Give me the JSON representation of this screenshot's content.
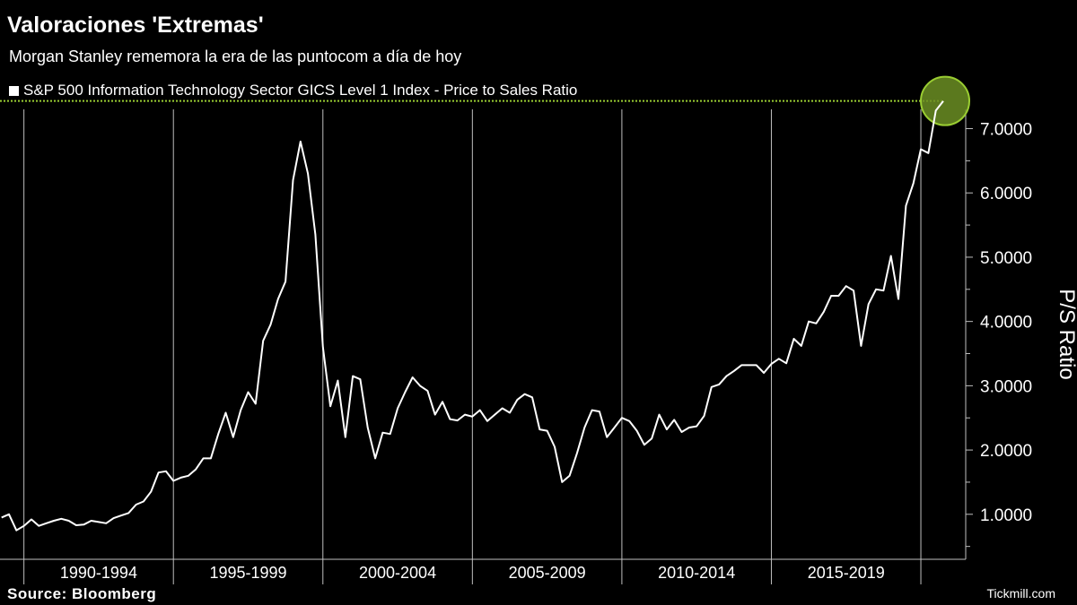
{
  "title": "Valoraciones 'Extremas'",
  "subtitle": "Morgan Stanley rememora la era de las puntocom a día de hoy",
  "source": "Source:  Bloomberg",
  "watermark": "Tickmill.com",
  "colors": {
    "background": "#000000",
    "line": "#ffffff",
    "reference_line": "#9acd32",
    "highlight_fill": "#6b8e23",
    "highlight_stroke": "#9acd32"
  },
  "chart_data": {
    "type": "line",
    "title": "Valoraciones 'Extremas'",
    "subtitle": "Morgan Stanley rememora la era de las puntocom a día de hoy",
    "ylabel": "P/S Ratio",
    "y_axis_side": "right",
    "ylim": [
      0.3,
      7.3
    ],
    "yticks": [
      1.0,
      2.0,
      3.0,
      4.0,
      5.0,
      6.0,
      7.0
    ],
    "ytick_labels": [
      "1.0000",
      "2.0000",
      "3.0000",
      "4.0000",
      "5.0000",
      "6.0000",
      "7.0000"
    ],
    "x_range": [
      1989.2,
      2021.5
    ],
    "x_boundaries": [
      1990,
      1995,
      2000,
      2005,
      2010,
      2015,
      2020
    ],
    "x_category_labels": [
      {
        "label": "1990-1994",
        "start": 1990,
        "end": 1995
      },
      {
        "label": "1995-1999",
        "start": 1995,
        "end": 2000
      },
      {
        "label": "2000-2004",
        "start": 2000,
        "end": 2005
      },
      {
        "label": "2005-2009",
        "start": 2005,
        "end": 2010
      },
      {
        "label": "2010-2014",
        "start": 2010,
        "end": 2015
      },
      {
        "label": "2015-2019",
        "start": 2015,
        "end": 2020
      }
    ],
    "grid": false,
    "legend": {
      "position": "top-left",
      "entries": [
        "S&P 500 Information Technology Sector GICS Level 1 Index - Price to Sales Ratio"
      ]
    },
    "reference_line": {
      "y": 7.43
    },
    "highlight_point": {
      "x": 2020.75,
      "y": 7.43
    },
    "series": [
      {
        "name": "S&P 500 Information Technology Sector GICS Level 1 Index - Price to Sales Ratio",
        "x": [
          1989.25,
          1989.5,
          1989.75,
          1990.0,
          1990.25,
          1990.5,
          1990.75,
          1991.0,
          1991.25,
          1991.5,
          1991.75,
          1992.0,
          1992.25,
          1992.5,
          1992.75,
          1993.0,
          1993.25,
          1993.5,
          1993.75,
          1994.0,
          1994.25,
          1994.5,
          1994.75,
          1995.0,
          1995.25,
          1995.5,
          1995.75,
          1996.0,
          1996.25,
          1996.5,
          1996.75,
          1997.0,
          1997.25,
          1997.5,
          1997.75,
          1998.0,
          1998.25,
          1998.5,
          1998.75,
          1999.0,
          1999.25,
          1999.5,
          1999.75,
          2000.0,
          2000.25,
          2000.5,
          2000.75,
          2001.0,
          2001.25,
          2001.5,
          2001.75,
          2002.0,
          2002.25,
          2002.5,
          2002.75,
          2003.0,
          2003.25,
          2003.5,
          2003.75,
          2004.0,
          2004.25,
          2004.5,
          2004.75,
          2005.0,
          2005.25,
          2005.5,
          2005.75,
          2006.0,
          2006.25,
          2006.5,
          2006.75,
          2007.0,
          2007.25,
          2007.5,
          2007.75,
          2008.0,
          2008.25,
          2008.5,
          2008.75,
          2009.0,
          2009.25,
          2009.5,
          2009.75,
          2010.0,
          2010.25,
          2010.5,
          2010.75,
          2011.0,
          2011.25,
          2011.5,
          2011.75,
          2012.0,
          2012.25,
          2012.5,
          2012.75,
          2013.0,
          2013.25,
          2013.5,
          2013.75,
          2014.0,
          2014.25,
          2014.5,
          2014.75,
          2015.0,
          2015.25,
          2015.5,
          2015.75,
          2016.0,
          2016.25,
          2016.5,
          2016.75,
          2017.0,
          2017.25,
          2017.5,
          2017.75,
          2018.0,
          2018.25,
          2018.5,
          2018.75,
          2019.0,
          2019.25,
          2019.5,
          2019.75,
          2020.0,
          2020.25,
          2020.5,
          2020.75
        ],
        "values": [
          0.95,
          1.0,
          0.75,
          0.82,
          0.92,
          0.82,
          0.86,
          0.9,
          0.93,
          0.9,
          0.83,
          0.84,
          0.9,
          0.88,
          0.86,
          0.94,
          0.98,
          1.02,
          1.15,
          1.2,
          1.35,
          1.65,
          1.67,
          1.52,
          1.57,
          1.6,
          1.7,
          1.87,
          1.87,
          2.25,
          2.58,
          2.2,
          2.62,
          2.9,
          2.72,
          3.7,
          3.95,
          4.35,
          4.62,
          6.2,
          6.8,
          6.3,
          5.35,
          3.6,
          2.68,
          3.08,
          2.2,
          3.15,
          3.1,
          2.35,
          1.87,
          2.27,
          2.25,
          2.65,
          2.9,
          3.13,
          3.0,
          2.92,
          2.55,
          2.75,
          2.48,
          2.46,
          2.55,
          2.52,
          2.62,
          2.45,
          2.55,
          2.65,
          2.58,
          2.78,
          2.87,
          2.82,
          2.32,
          2.3,
          2.05,
          1.5,
          1.6,
          1.95,
          2.35,
          2.62,
          2.6,
          2.2,
          2.35,
          2.5,
          2.45,
          2.3,
          2.08,
          2.18,
          2.55,
          2.32,
          2.47,
          2.28,
          2.35,
          2.37,
          2.53,
          2.98,
          3.02,
          3.15,
          3.23,
          3.32,
          3.32,
          3.32,
          3.2,
          3.34,
          3.42,
          3.35,
          3.73,
          3.62,
          4.0,
          3.97,
          4.15,
          4.4,
          4.4,
          4.55,
          4.48,
          3.62,
          4.27,
          4.5,
          4.48,
          5.02,
          4.35,
          5.8,
          6.15,
          6.68,
          6.62,
          7.28,
          7.43
        ]
      }
    ]
  }
}
